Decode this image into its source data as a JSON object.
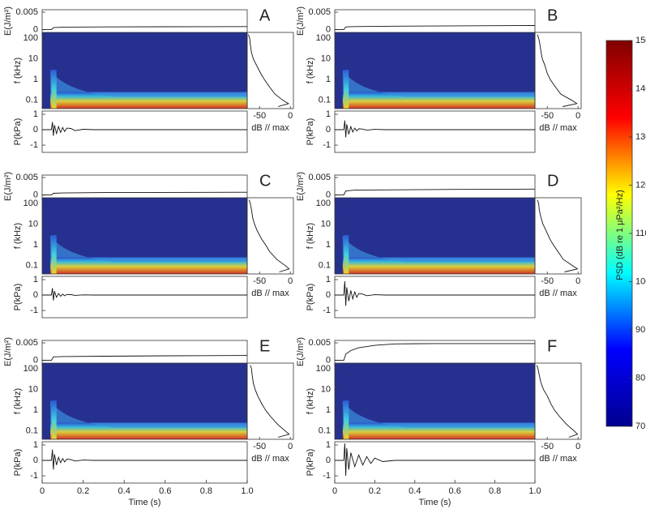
{
  "chart_data": {
    "type": "spectrogram_panels",
    "colorbar": {
      "label": "PSD (dB re 1 μPa²/Hz)",
      "lim": [
        70,
        150
      ],
      "ticks": [
        70,
        80,
        90,
        100,
        110,
        120,
        130,
        140,
        150
      ],
      "colors": [
        "#00008f",
        "#0000ff",
        "#00ffff",
        "#ffff00",
        "#ff0000",
        "#800000"
      ]
    },
    "time_axis": {
      "label": "Time (s)",
      "xlim": [
        0,
        1
      ],
      "xticks": [
        0,
        0.2,
        0.4,
        0.6,
        0.8,
        {
          "value": 1,
          "label": "1.0"
        }
      ]
    },
    "energy_axis": {
      "label": "E(J/m²)",
      "ylim": [
        -0.0017,
        0.0057
      ],
      "yticks": [
        0,
        0.005
      ]
    },
    "frequency_axis": {
      "label": "f (kHz)",
      "ylim": [
        0.04,
        190
      ],
      "yticks": [
        0.1,
        1,
        10,
        100
      ]
    },
    "spectrum_axis": {
      "label": "dB // max",
      "xlim": [
        -70,
        5
      ],
      "xticks": [
        -50,
        0
      ]
    },
    "pressure_axis": {
      "label": "P(kPa)",
      "ylim": [
        -1.47,
        1.21
      ],
      "yticks": [
        -1,
        0,
        1
      ]
    },
    "panels": [
      {
        "label": "A",
        "energy": {
          "x": [
            0,
            0.045,
            0.055,
            0.1,
            0.3,
            0.6,
            1.0
          ],
          "values": [
            0,
            0,
            0.0006,
            0.0007,
            0.0008,
            0.00085,
            0.0009
          ]
        },
        "spectrum": {
          "f": [
            150,
            100,
            50,
            20,
            10,
            5,
            2,
            1,
            0.5,
            0.2,
            0.1,
            0.07,
            0.05
          ],
          "values": [
            -68,
            -66,
            -65,
            -63,
            -60,
            -55,
            -48,
            -42,
            -35,
            -25,
            -12,
            -3,
            -20
          ]
        },
        "pressure": {
          "x": [
            0,
            0.045,
            0.05,
            0.055,
            0.06,
            0.07,
            0.08,
            0.09,
            0.1,
            0.11,
            0.12,
            0.14,
            0.16,
            0.2,
            0.25,
            1.0
          ],
          "values": [
            0,
            0,
            0.5,
            -0.4,
            0.3,
            -0.25,
            0.2,
            -0.18,
            0.15,
            -0.12,
            0.1,
            0.08,
            -0.06,
            0.03,
            0,
            0
          ]
        }
      },
      {
        "label": "B",
        "energy": {
          "x": [
            0,
            0.045,
            0.055,
            0.1,
            0.3,
            0.6,
            1.0
          ],
          "values": [
            0,
            0,
            0.0008,
            0.0009,
            0.001,
            0.0011,
            0.0012
          ]
        },
        "spectrum": {
          "f": [
            150,
            100,
            50,
            20,
            10,
            5,
            2,
            1,
            0.5,
            0.2,
            0.1,
            0.07,
            0.05
          ],
          "values": [
            -66,
            -64,
            -62,
            -60,
            -58,
            -54,
            -50,
            -45,
            -38,
            -28,
            -10,
            -2,
            -25
          ]
        },
        "pressure": {
          "x": [
            0,
            0.045,
            0.05,
            0.055,
            0.06,
            0.07,
            0.08,
            0.09,
            0.1,
            0.11,
            0.12,
            0.14,
            0.16,
            0.2,
            0.25,
            1.0
          ],
          "values": [
            0,
            0,
            0.6,
            -0.5,
            0.35,
            -0.3,
            0.2,
            -0.15,
            0.1,
            -0.08,
            0.06,
            0.04,
            -0.03,
            0.02,
            0,
            0
          ]
        }
      },
      {
        "label": "C",
        "energy": {
          "x": [
            0,
            0.045,
            0.055,
            0.1,
            0.3,
            0.6,
            1.0
          ],
          "values": [
            0,
            0,
            0.0005,
            0.0006,
            0.0007,
            0.00075,
            0.0008
          ]
        },
        "spectrum": {
          "f": [
            150,
            100,
            50,
            20,
            10,
            5,
            2,
            1,
            0.5,
            0.2,
            0.1,
            0.07,
            0.05
          ],
          "values": [
            -67,
            -65,
            -63,
            -61,
            -58,
            -54,
            -47,
            -40,
            -34,
            -22,
            -8,
            -2,
            -18
          ]
        },
        "pressure": {
          "x": [
            0,
            0.045,
            0.05,
            0.055,
            0.06,
            0.07,
            0.08,
            0.09,
            0.1,
            0.11,
            0.12,
            0.14,
            0.16,
            0.2,
            0.25,
            1.0
          ],
          "values": [
            0,
            0,
            0.45,
            -0.35,
            0.25,
            -0.15,
            0.1,
            -0.08,
            0.06,
            -0.05,
            0.04,
            0.03,
            -0.02,
            0.01,
            0,
            0
          ]
        }
      },
      {
        "label": "D",
        "energy": {
          "x": [
            0,
            0.045,
            0.055,
            0.1,
            0.3,
            0.6,
            1.0
          ],
          "values": [
            0,
            0,
            0.0012,
            0.0014,
            0.0015,
            0.0016,
            0.0017
          ]
        },
        "spectrum": {
          "f": [
            150,
            100,
            50,
            20,
            10,
            5,
            2,
            1,
            0.5,
            0.2,
            0.1,
            0.07,
            0.05
          ],
          "values": [
            -66,
            -64,
            -63,
            -60,
            -57,
            -52,
            -46,
            -40,
            -33,
            -24,
            -9,
            -1,
            -22
          ]
        },
        "pressure": {
          "x": [
            0,
            0.045,
            0.05,
            0.055,
            0.06,
            0.07,
            0.08,
            0.09,
            0.1,
            0.11,
            0.12,
            0.14,
            0.16,
            0.2,
            0.25,
            1.0
          ],
          "values": [
            0,
            0,
            0.9,
            -0.7,
            0.5,
            -0.4,
            0.3,
            -0.25,
            0.2,
            -0.15,
            0.1,
            0.06,
            -0.04,
            0.02,
            0,
            0
          ]
        }
      },
      {
        "label": "E",
        "energy": {
          "x": [
            0,
            0.045,
            0.055,
            0.1,
            0.3,
            0.6,
            1.0
          ],
          "values": [
            0,
            0,
            0.001,
            0.0011,
            0.0012,
            0.0013,
            0.0014
          ]
        },
        "spectrum": {
          "f": [
            150,
            100,
            50,
            20,
            10,
            5,
            2,
            1,
            0.5,
            0.2,
            0.1,
            0.07,
            0.05
          ],
          "values": [
            -65,
            -63,
            -62,
            -60,
            -57,
            -53,
            -46,
            -40,
            -32,
            -20,
            -8,
            -2,
            -20
          ]
        },
        "pressure": {
          "x": [
            0,
            0.045,
            0.05,
            0.055,
            0.06,
            0.07,
            0.08,
            0.09,
            0.1,
            0.11,
            0.12,
            0.14,
            0.16,
            0.2,
            0.25,
            1.0
          ],
          "values": [
            0,
            0,
            0.7,
            -0.6,
            0.4,
            -0.3,
            0.2,
            -0.15,
            0.12,
            -0.1,
            0.08,
            0.05,
            -0.04,
            0.02,
            0,
            0
          ]
        }
      },
      {
        "label": "F",
        "energy": {
          "x": [
            0,
            0.045,
            0.055,
            0.08,
            0.12,
            0.2,
            0.3,
            0.5,
            1.0
          ],
          "values": [
            0,
            0,
            0.0018,
            0.0028,
            0.0036,
            0.0043,
            0.0047,
            0.0048,
            0.0048
          ]
        },
        "spectrum": {
          "f": [
            150,
            100,
            50,
            20,
            10,
            5,
            2,
            1,
            0.5,
            0.2,
            0.1,
            0.07,
            0.05
          ],
          "values": [
            -67,
            -65,
            -63,
            -60,
            -56,
            -50,
            -44,
            -38,
            -30,
            -18,
            -6,
            -1,
            -15
          ]
        },
        "pressure": {
          "x": [
            0,
            0.045,
            0.05,
            0.055,
            0.06,
            0.07,
            0.08,
            0.1,
            0.12,
            0.14,
            0.16,
            0.18,
            0.2,
            0.24,
            0.3,
            1.0
          ],
          "values": [
            0,
            0,
            1.1,
            -1.0,
            0.8,
            -0.6,
            0.5,
            -0.4,
            0.35,
            -0.3,
            0.25,
            -0.2,
            0.15,
            -0.08,
            0,
            0
          ]
        }
      }
    ]
  }
}
